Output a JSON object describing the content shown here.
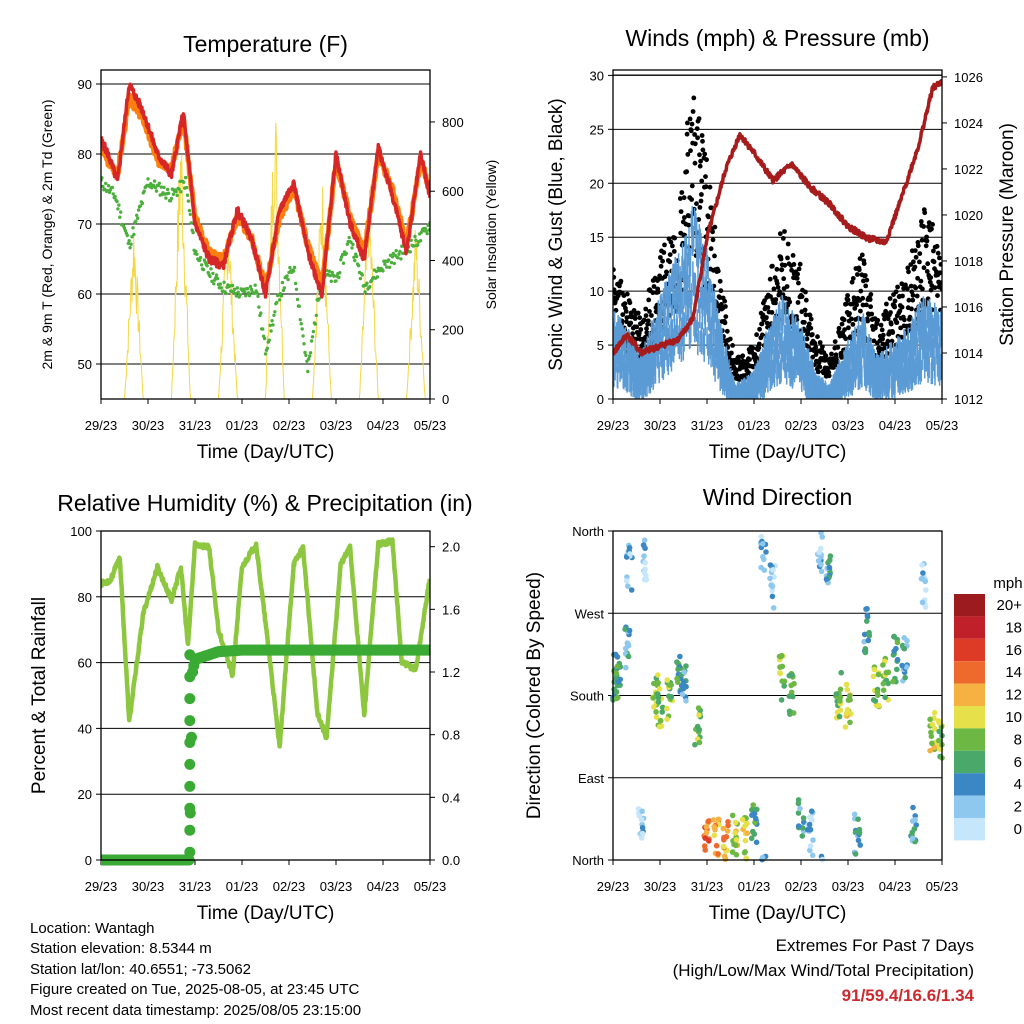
{
  "chart_data": [
    {
      "type": "line",
      "title": "Temperature (F)",
      "xlabel": "Time (Day/UTC)",
      "ylabel": "2m & 9m T (Red, Orange) & 2m Td (Green)",
      "y2label": "Solar Insolation (Yellow)",
      "x_ticks": [
        "29/23",
        "30/23",
        "31/23",
        "01/23",
        "02/23",
        "03/23",
        "04/23",
        "05/23"
      ],
      "ylim": [
        45,
        92
      ],
      "y_ticks": [
        50,
        60,
        70,
        80,
        90
      ],
      "y2lim": [
        0,
        950
      ],
      "y2_ticks": [
        0,
        200,
        400,
        600,
        800
      ],
      "grid": "horizontal",
      "colors": {
        "t2m": "#d62728",
        "t9m": "#ff7f0e",
        "td2m": "#4caf3c",
        "solar": "#f5d742"
      },
      "series": [
        {
          "axis": "left",
          "values_day": [
            0,
            0.15,
            0.35,
            0.6,
            0.9,
            1.2,
            1.5,
            1.75,
            2.0,
            2.3,
            2.6,
            2.9,
            3.2,
            3.5,
            3.8,
            4.1,
            4.4,
            4.7,
            5.0,
            5.3,
            5.6,
            5.9,
            6.2,
            6.5,
            6.8,
            7.0
          ],
          "values": [
            82,
            80,
            76,
            90,
            86,
            80,
            77,
            86,
            70,
            65,
            64,
            72,
            68,
            60,
            72,
            76,
            66,
            60,
            80,
            70,
            65,
            81,
            74,
            66,
            80,
            74
          ]
        },
        {
          "axis": "left",
          "values_day": [
            0,
            0.15,
            0.35,
            0.6,
            0.9,
            1.2,
            1.5,
            1.75,
            2.0,
            2.3,
            2.6,
            2.9,
            3.2,
            3.5,
            3.8,
            4.1,
            4.4,
            4.7,
            5.0,
            5.3,
            5.6,
            5.9,
            6.2,
            6.5,
            6.8,
            7.0
          ],
          "values": [
            81,
            79,
            77,
            88,
            85,
            79,
            78,
            85,
            71,
            66,
            65,
            71,
            68,
            61,
            71,
            75,
            67,
            61,
            79,
            71,
            66,
            80,
            75,
            67,
            79,
            75
          ]
        },
        {
          "axis": "left",
          "values_day": [
            0,
            0.3,
            0.6,
            1.0,
            1.5,
            1.8,
            2.0,
            2.3,
            2.6,
            3.0,
            3.3,
            3.5,
            3.8,
            4.1,
            4.4,
            4.7,
            5.0,
            5.3,
            5.6,
            6.0,
            6.4,
            6.8,
            7.0
          ],
          "values": [
            76,
            74,
            67,
            76,
            74,
            76,
            66,
            63,
            61,
            60,
            61,
            52,
            60,
            64,
            49,
            63,
            62,
            68,
            61,
            64,
            66,
            68,
            70
          ]
        },
        {
          "axis": "right",
          "values_day": [
            0,
            0.5,
            0.7,
            0.9,
            1.5,
            1.7,
            1.9,
            2.5,
            2.7,
            2.9,
            3.5,
            3.7,
            3.9,
            4.5,
            4.7,
            4.9,
            5.5,
            5.7,
            5.9,
            6.5,
            6.7,
            6.9,
            7.0
          ],
          "values": [
            0,
            0,
            550,
            0,
            0,
            850,
            0,
            0,
            600,
            0,
            0,
            950,
            0,
            0,
            700,
            0,
            0,
            650,
            0,
            0,
            550,
            0,
            0
          ]
        }
      ]
    },
    {
      "type": "scatter",
      "title": "Winds (mph) & Pressure (mb)",
      "xlabel": "Time (Day/UTC)",
      "ylabel": "Sonic Wind & Gust (Blue, Black)",
      "y2label": "Station Pressure (Maroon)",
      "x_ticks": [
        "29/23",
        "30/23",
        "31/23",
        "01/23",
        "02/23",
        "03/23",
        "04/23",
        "05/23"
      ],
      "ylim": [
        0,
        30.5
      ],
      "y_ticks": [
        0,
        5,
        10,
        15,
        20,
        25,
        30
      ],
      "y2lim": [
        1012,
        1026.3
      ],
      "y2_ticks": [
        1012,
        1014,
        1016,
        1018,
        1020,
        1022,
        1024,
        1026
      ],
      "grid": "horizontal",
      "colors": {
        "wind": "#5b9bd5",
        "gust": "#000000",
        "pressure": "#a61c1c"
      },
      "series": [
        {
          "axis": "left",
          "values_day": [
            0,
            0.3,
            0.6,
            1.0,
            1.4,
            1.7,
            2.0,
            2.3,
            2.6,
            3.0,
            3.3,
            3.6,
            4.0,
            4.3,
            4.6,
            5.0,
            5.3,
            5.6,
            6.0,
            6.3,
            6.6,
            7.0
          ],
          "values": [
            6,
            5,
            3,
            7,
            10,
            13,
            10,
            5,
            1,
            2,
            5,
            7,
            5,
            2,
            1,
            4,
            6,
            3,
            4,
            5,
            7,
            6
          ]
        },
        {
          "axis": "left",
          "values_day": [
            0,
            0.3,
            0.6,
            1.0,
            1.4,
            1.7,
            2.0,
            2.3,
            2.6,
            3.0,
            3.3,
            3.6,
            4.0,
            4.3,
            4.6,
            5.0,
            5.3,
            5.6,
            6.0,
            6.3,
            6.6,
            7.0
          ],
          "values": [
            10,
            8,
            6,
            11,
            15,
            25,
            18,
            9,
            3,
            4,
            9,
            13,
            10,
            5,
            3,
            8,
            11,
            6,
            8,
            10,
            15,
            11
          ]
        },
        {
          "axis": "right",
          "values_day": [
            0,
            0.3,
            0.6,
            1.0,
            1.4,
            1.7,
            2.0,
            2.4,
            2.7,
            3.0,
            3.4,
            3.8,
            4.2,
            4.6,
            5.0,
            5.4,
            5.8,
            6.1,
            6.5,
            6.8,
            7.0
          ],
          "values": [
            1014,
            1014.8,
            1014,
            1014.3,
            1014.6,
            1015.5,
            1019,
            1022,
            1023.5,
            1022.7,
            1021.5,
            1022.2,
            1021.2,
            1020.5,
            1019.5,
            1019,
            1018.8,
            1020.5,
            1023,
            1025.5,
            1025.8
          ]
        }
      ]
    },
    {
      "type": "line",
      "title": "Relative Humidity (%) & Precipitation (in)",
      "xlabel": "Time (Day/UTC)",
      "ylabel": "Percent & Total Rainfall",
      "x_ticks": [
        "29/23",
        "30/23",
        "31/23",
        "01/23",
        "02/23",
        "03/23",
        "04/23",
        "05/23"
      ],
      "ylim": [
        0,
        100
      ],
      "y_ticks": [
        0,
        20,
        40,
        60,
        80,
        100
      ],
      "y2lim": [
        0,
        2.1
      ],
      "y2_ticks": [
        "0.0",
        "0.4",
        "0.8",
        "1.2",
        "1.6",
        "2.0"
      ],
      "grid": "horizontal",
      "colors": {
        "rh": "#8dc63f",
        "precip": "#3aaa35"
      },
      "series": [
        {
          "axis": "left",
          "values_day": [
            0,
            0.2,
            0.4,
            0.6,
            0.9,
            1.2,
            1.5,
            1.7,
            1.85,
            2.0,
            2.3,
            2.5,
            2.8,
            3.0,
            3.3,
            3.6,
            3.8,
            4.1,
            4.3,
            4.6,
            4.8,
            5.1,
            5.3,
            5.6,
            5.9,
            6.2,
            6.4,
            6.7,
            7.0
          ],
          "values": [
            84,
            85,
            92,
            42,
            75,
            89,
            79,
            89,
            65,
            96,
            95,
            70,
            56,
            89,
            96,
            60,
            34,
            90,
            95,
            45,
            37,
            90,
            95,
            44,
            96,
            97,
            60,
            58,
            86
          ]
        },
        {
          "axis": "right",
          "values_day": [
            0,
            0.5,
            1.0,
            1.5,
            1.88,
            1.9,
            1.92,
            1.95,
            2.0,
            2.2,
            2.5,
            3.0,
            4.0,
            5.0,
            6.0,
            7.0
          ],
          "values": [
            0,
            0,
            0,
            0,
            0,
            0.3,
            0.7,
            1.2,
            1.28,
            1.3,
            1.33,
            1.34,
            1.34,
            1.34,
            1.34,
            1.34
          ]
        }
      ]
    },
    {
      "type": "scatter",
      "title": "Wind Direction",
      "xlabel": "Time (Day/UTC)",
      "ylabel": "Direction (Colored By Speed)",
      "x_ticks": [
        "29/23",
        "30/23",
        "31/23",
        "01/23",
        "02/23",
        "03/23",
        "04/23",
        "05/23"
      ],
      "y_ticks": [
        "North",
        "East",
        "South",
        "West",
        "North"
      ],
      "ylim": [
        0,
        360
      ],
      "grid": "horizontal",
      "legend_title": "mph",
      "legend_labels": [
        "0",
        "2",
        "4",
        "6",
        "8",
        "10",
        "12",
        "14",
        "16",
        "18",
        "20+"
      ],
      "legend_colors": [
        "#c6e6fb",
        "#8fc8ee",
        "#3b87c3",
        "#4aa86a",
        "#6db844",
        "#e6e04a",
        "#f5b142",
        "#ee6a2c",
        "#dd3b26",
        "#c0202a",
        "#9c1b1f"
      ],
      "series": [
        {
          "values_day": [
            0.05,
            0.1,
            0.3,
            0.35,
            0.6,
            0.7,
            0.9,
            1.0,
            1.2,
            1.4,
            1.5,
            1.8,
            2.0,
            2.2,
            2.4,
            2.6,
            2.8,
            3.0,
            3.2,
            3.4,
            3.6,
            3.8,
            4.0,
            4.2,
            4.4,
            4.6,
            4.8,
            5.0,
            5.2,
            5.4,
            5.6,
            5.8,
            6.0,
            6.2,
            6.4,
            6.6,
            6.8,
            6.95
          ],
          "values": [
            200,
            205,
            230,
            320,
            40,
            330,
            180,
            170,
            175,
            200,
            190,
            150,
            30,
            25,
            20,
            30,
            25,
            40,
            340,
            300,
            200,
            180,
            50,
            30,
            340,
            310,
            180,
            170,
            30,
            250,
            190,
            200,
            220,
            220,
            40,
            300,
            140,
            130
          ],
          "speeds_mph": [
            6,
            6,
            4,
            2,
            2,
            2,
            8,
            8,
            8,
            6,
            4,
            8,
            14,
            12,
            12,
            10,
            10,
            6,
            2,
            2,
            8,
            6,
            4,
            2,
            2,
            4,
            8,
            10,
            4,
            4,
            8,
            8,
            6,
            4,
            4,
            2,
            10,
            8
          ]
        }
      ]
    }
  ],
  "footer": {
    "location": "Location: Wantagh",
    "elevation": "Station elevation: 8.5344 m",
    "latlon": "Station lat/lon: 40.6551; -73.5062",
    "created": "Figure created on Tue, 2025-08-05, at 23:45 UTC",
    "recent": "Most recent data timestamp: 2025/08/05 23:15:00"
  },
  "extremes": {
    "line1": "Extremes For Past 7 Days",
    "line2": "(High/Low/Max Wind/Total Precipitation)",
    "values": "91/59.4/16.6/1.34"
  }
}
